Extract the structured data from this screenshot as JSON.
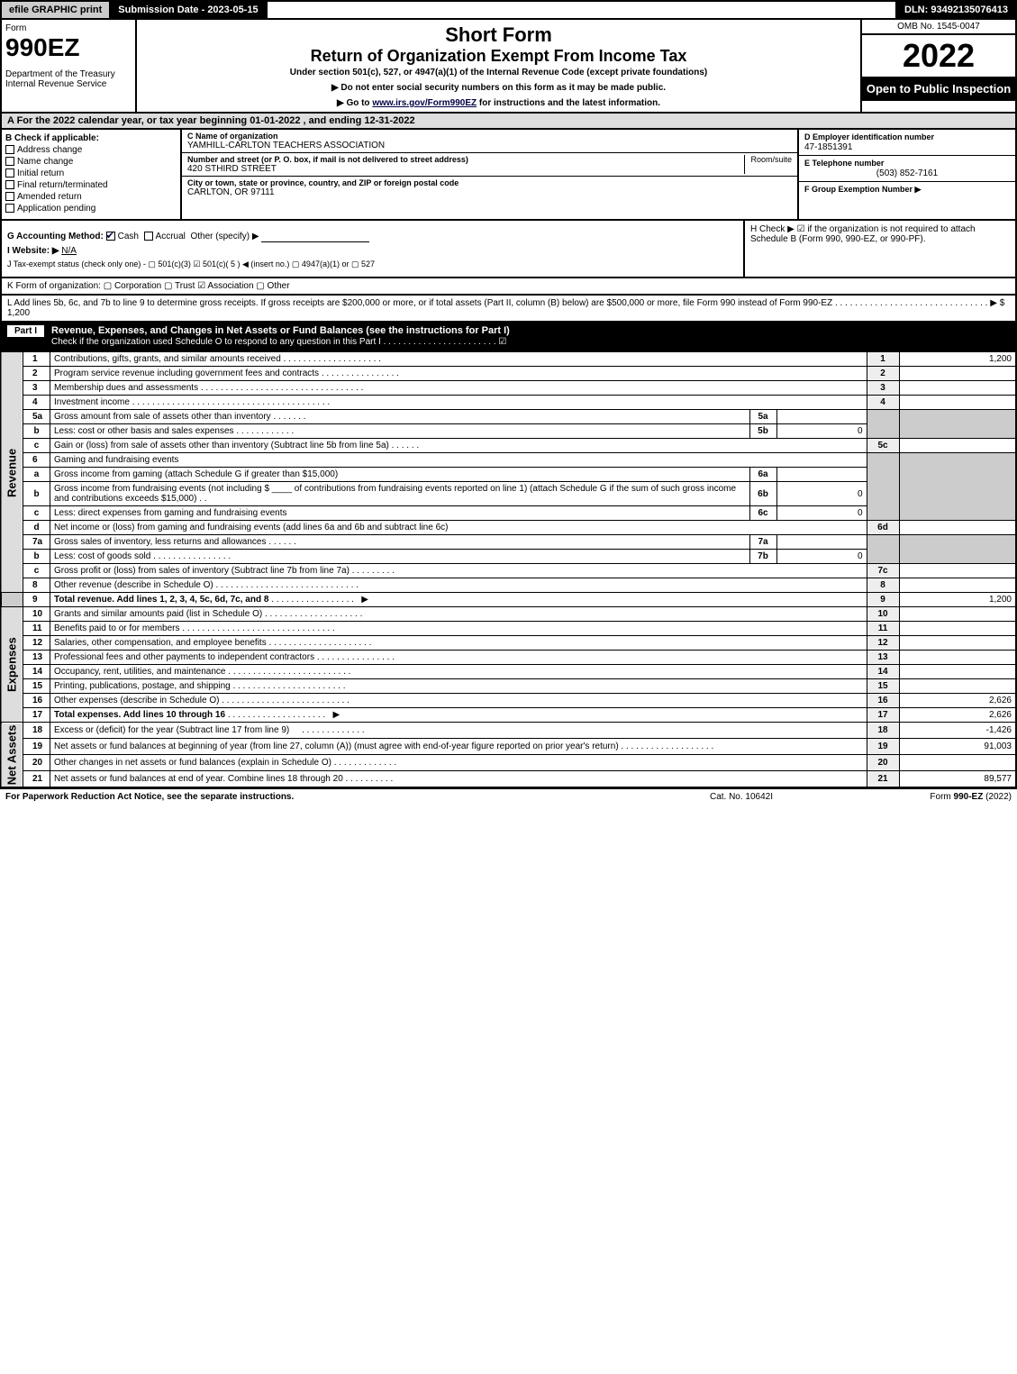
{
  "topbar": {
    "efile": "efile GRAPHIC print",
    "submission": "Submission Date - 2023-05-15",
    "dln": "DLN: 93492135076413"
  },
  "header": {
    "form_label": "Form",
    "form_no": "990EZ",
    "dept": "Department of the Treasury\nInternal Revenue Service",
    "title1": "Short Form",
    "title2": "Return of Organization Exempt From Income Tax",
    "subtitle": "Under section 501(c), 527, or 4947(a)(1) of the Internal Revenue Code (except private foundations)",
    "instr1": "▶ Do not enter social security numbers on this form as it may be made public.",
    "instr2_prefix": "▶ Go to ",
    "instr2_link": "www.irs.gov/Form990EZ",
    "instr2_suffix": " for instructions and the latest information.",
    "omb": "OMB No. 1545-0047",
    "year": "2022",
    "open": "Open to Public Inspection"
  },
  "section_a": "A  For the 2022 calendar year, or tax year beginning 01-01-2022 , and ending 12-31-2022",
  "section_b": {
    "label": "B  Check if applicable:",
    "opts": [
      "Address change",
      "Name change",
      "Initial return",
      "Final return/terminated",
      "Amended return",
      "Application pending"
    ]
  },
  "section_c": {
    "name_lbl": "C Name of organization",
    "name_val": "YAMHILL-CARLTON TEACHERS ASSOCIATION",
    "street_lbl": "Number and street (or P. O. box, if mail is not delivered to street address)",
    "street_val": "420 STHIRD STREET",
    "room_lbl": "Room/suite",
    "city_lbl": "City or town, state or province, country, and ZIP or foreign postal code",
    "city_val": "CARLTON, OR  97111"
  },
  "section_d": {
    "lbl": "D Employer identification number",
    "val": "47-1851391"
  },
  "section_e": {
    "lbl": "E Telephone number",
    "val": "(503) 852-7161"
  },
  "section_f": {
    "lbl": "F Group Exemption Number   ▶",
    "val": ""
  },
  "section_g": {
    "label": "G Accounting Method:",
    "cash": "Cash",
    "accrual": "Accrual",
    "other": "Other (specify) ▶"
  },
  "section_h": "H  Check ▶ ☑ if the organization is not required to attach Schedule B (Form 990, 990-EZ, or 990-PF).",
  "section_i": {
    "label": "I Website: ▶",
    "val": "N/A"
  },
  "section_j": "J Tax-exempt status (check only one) -  ▢ 501(c)(3)  ☑ 501(c)( 5 ) ◀ (insert no.)  ▢ 4947(a)(1) or  ▢ 527",
  "section_k": "K Form of organization:   ▢ Corporation   ▢ Trust   ☑ Association   ▢ Other",
  "section_l": {
    "text": "L Add lines 5b, 6c, and 7b to line 9 to determine gross receipts. If gross receipts are $200,000 or more, or if total assets (Part II, column (B) below) are $500,000 or more, file Form 990 instead of Form 990-EZ . . . . . . . . . . . . . . . . . . . . . . . . . . . . . . . ▶",
    "amount": "$ 1,200"
  },
  "part1": {
    "label": "Part I",
    "title": "Revenue, Expenses, and Changes in Net Assets or Fund Balances (see the instructions for Part I)",
    "schedO": "Check if the organization used Schedule O to respond to any question in this Part I . . . . . . . . . . . . . . . . . . . . . . . ☑"
  },
  "revenue_label": "Revenue",
  "expenses_label": "Expenses",
  "netassets_label": "Net Assets",
  "lines": {
    "1": {
      "desc": "Contributions, gifts, grants, and similar amounts received",
      "amount": "1,200"
    },
    "2": {
      "desc": "Program service revenue including government fees and contracts",
      "amount": ""
    },
    "3": {
      "desc": "Membership dues and assessments",
      "amount": ""
    },
    "4": {
      "desc": "Investment income",
      "amount": ""
    },
    "5a": {
      "desc": "Gross amount from sale of assets other than inventory",
      "inline": ""
    },
    "5b": {
      "desc": "Less: cost or other basis and sales expenses",
      "inline": "0"
    },
    "5c": {
      "desc": "Gain or (loss) from sale of assets other than inventory (Subtract line 5b from line 5a)",
      "amount": ""
    },
    "6": {
      "desc": "Gaming and fundraising events"
    },
    "6a": {
      "desc": "Gross income from gaming (attach Schedule G if greater than $15,000)",
      "inline": ""
    },
    "6b": {
      "desc": "Gross income from fundraising events (not including $ ____ of contributions from fundraising events reported on line 1) (attach Schedule G if the sum of such gross income and contributions exceeds $15,000)",
      "inline": "0"
    },
    "6c": {
      "desc": "Less: direct expenses from gaming and fundraising events",
      "inline": "0"
    },
    "6d": {
      "desc": "Net income or (loss) from gaming and fundraising events (add lines 6a and 6b and subtract line 6c)",
      "amount": ""
    },
    "7a": {
      "desc": "Gross sales of inventory, less returns and allowances",
      "inline": ""
    },
    "7b": {
      "desc": "Less: cost of goods sold",
      "inline": "0"
    },
    "7c": {
      "desc": "Gross profit or (loss) from sales of inventory (Subtract line 7b from line 7a)",
      "amount": ""
    },
    "8": {
      "desc": "Other revenue (describe in Schedule O)",
      "amount": ""
    },
    "9": {
      "desc": "Total revenue. Add lines 1, 2, 3, 4, 5c, 6d, 7c, and 8",
      "amount": "1,200"
    },
    "10": {
      "desc": "Grants and similar amounts paid (list in Schedule O)",
      "amount": ""
    },
    "11": {
      "desc": "Benefits paid to or for members",
      "amount": ""
    },
    "12": {
      "desc": "Salaries, other compensation, and employee benefits",
      "amount": ""
    },
    "13": {
      "desc": "Professional fees and other payments to independent contractors",
      "amount": ""
    },
    "14": {
      "desc": "Occupancy, rent, utilities, and maintenance",
      "amount": ""
    },
    "15": {
      "desc": "Printing, publications, postage, and shipping",
      "amount": ""
    },
    "16": {
      "desc": "Other expenses (describe in Schedule O)",
      "amount": "2,626"
    },
    "17": {
      "desc": "Total expenses. Add lines 10 through 16",
      "amount": "2,626"
    },
    "18": {
      "desc": "Excess or (deficit) for the year (Subtract line 17 from line 9)",
      "amount": "-1,426"
    },
    "19": {
      "desc": "Net assets or fund balances at beginning of year (from line 27, column (A)) (must agree with end-of-year figure reported on prior year's return)",
      "amount": "91,003"
    },
    "20": {
      "desc": "Other changes in net assets or fund balances (explain in Schedule O)",
      "amount": ""
    },
    "21": {
      "desc": "Net assets or fund balances at end of year. Combine lines 18 through 20",
      "amount": "89,577"
    }
  },
  "footer": {
    "left": "For Paperwork Reduction Act Notice, see the separate instructions.",
    "mid": "Cat. No. 10642I",
    "right_prefix": "Form ",
    "right_form": "990-EZ",
    "right_suffix": " (2022)"
  }
}
